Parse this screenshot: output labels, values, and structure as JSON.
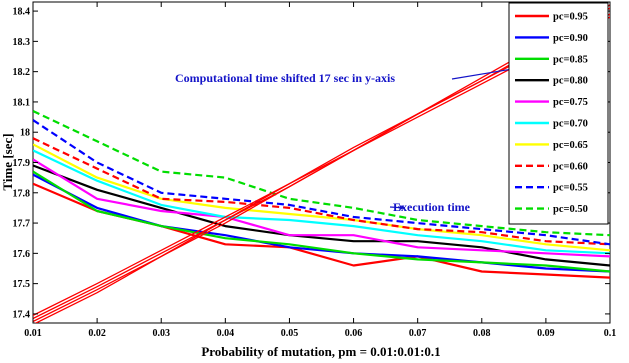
{
  "chart_data": {
    "type": "line",
    "title": "",
    "xlabel": "Probability of mutation, pm = 0.01:0.01:0.1",
    "ylabel": "Time [sec]",
    "xlim": [
      0.01,
      0.1
    ],
    "ylim": [
      17.37,
      18.43
    ],
    "x": [
      0.01,
      0.02,
      0.03,
      0.04,
      0.05,
      0.06,
      0.07,
      0.08,
      0.09,
      0.1
    ],
    "x_tick_labels": [
      "0.01",
      "0.02",
      "0.03",
      "0.04",
      "0.05",
      "0.06",
      "0.07",
      "0.08",
      "0.09",
      "0.1"
    ],
    "y_ticks": [
      17.4,
      17.5,
      17.6,
      17.7,
      17.8,
      17.9,
      18.0,
      18.1,
      18.2,
      18.3,
      18.4
    ],
    "y_tick_labels": [
      "17.4",
      "17.5",
      "17.6",
      "17.7",
      "17.8",
      "17.9",
      "18",
      "18.1",
      "18.2",
      "18.3",
      "18.4"
    ],
    "grid": false,
    "legend_position": "top-right",
    "series": [
      {
        "name": "pc=0.95",
        "color": "#ff0000",
        "dash": "solid",
        "values": [
          17.83,
          17.74,
          17.69,
          17.63,
          17.62,
          17.56,
          17.59,
          17.54,
          17.53,
          17.52
        ]
      },
      {
        "name": "pc=0.90",
        "color": "#0000ff",
        "dash": "solid",
        "values": [
          17.86,
          17.75,
          17.69,
          17.66,
          17.62,
          17.6,
          17.59,
          17.57,
          17.55,
          17.54
        ]
      },
      {
        "name": "pc=0.85",
        "color": "#00dd00",
        "dash": "solid",
        "values": [
          17.87,
          17.74,
          17.69,
          17.65,
          17.63,
          17.6,
          17.58,
          17.57,
          17.56,
          17.54
        ]
      },
      {
        "name": "pc=0.80",
        "color": "#000000",
        "dash": "solid",
        "values": [
          17.89,
          17.81,
          17.75,
          17.69,
          17.66,
          17.64,
          17.64,
          17.62,
          17.58,
          17.56
        ]
      },
      {
        "name": "pc=0.75",
        "color": "#ff00ff",
        "dash": "solid",
        "values": [
          17.91,
          17.78,
          17.74,
          17.72,
          17.66,
          17.66,
          17.62,
          17.61,
          17.6,
          17.59
        ]
      },
      {
        "name": "pc=0.70",
        "color": "#00ffff",
        "dash": "solid",
        "values": [
          17.94,
          17.84,
          17.76,
          17.72,
          17.71,
          17.69,
          17.66,
          17.64,
          17.61,
          17.6
        ]
      },
      {
        "name": "pc=0.65",
        "color": "#ffff00",
        "dash": "solid",
        "values": [
          17.96,
          17.85,
          17.78,
          17.75,
          17.73,
          17.71,
          17.68,
          17.66,
          17.63,
          17.61
        ]
      },
      {
        "name": "pc=0.60",
        "color": "#ff0000",
        "dash": "dashed",
        "values": [
          17.98,
          17.88,
          17.78,
          17.77,
          17.75,
          17.71,
          17.68,
          17.67,
          17.64,
          17.63
        ]
      },
      {
        "name": "pc=0.55",
        "color": "#0000ff",
        "dash": "dashed",
        "values": [
          18.04,
          17.9,
          17.8,
          17.78,
          17.76,
          17.72,
          17.7,
          17.68,
          17.66,
          17.63
        ]
      },
      {
        "name": "pc=0.50",
        "color": "#00dd00",
        "dash": "dashed",
        "values": [
          18.07,
          17.97,
          17.87,
          17.85,
          17.78,
          17.75,
          17.71,
          17.69,
          17.67,
          17.66
        ]
      },
      {
        "name": "",
        "color": "#ff0000",
        "dash": "solid",
        "values": [
          17.395,
          17.5,
          17.61,
          17.72,
          17.83,
          17.94,
          18.05,
          18.16,
          18.27,
          18.38
        ]
      },
      {
        "name": "",
        "color": "#ff0000",
        "dash": "solid",
        "values": [
          17.385,
          17.49,
          17.6,
          17.71,
          17.83,
          17.95,
          18.06,
          18.17,
          18.28,
          18.39
        ]
      },
      {
        "name": "",
        "color": "#ff0000",
        "dash": "solid",
        "values": [
          17.375,
          17.48,
          17.59,
          17.71,
          17.82,
          17.94,
          18.06,
          18.17,
          18.29,
          18.41
        ]
      },
      {
        "name": "",
        "color": "#ff0000",
        "dash": "solid",
        "values": [
          17.365,
          17.47,
          17.59,
          17.7,
          17.82,
          17.94,
          18.06,
          18.18,
          18.3,
          18.42
        ]
      }
    ],
    "annotations": [
      {
        "text": "Computational time shifted 17 sec in y-axis",
        "arrow_to": [
          0.088,
          18.22
        ]
      },
      {
        "text": "Execution time",
        "arrow_to": [
          0.068,
          17.75
        ]
      }
    ]
  }
}
